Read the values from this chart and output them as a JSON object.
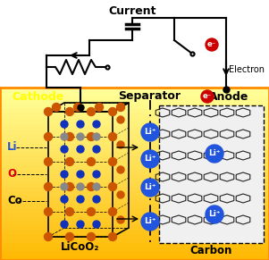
{
  "bg_color": "#FFFFFF",
  "yellow_top": "#FFFF99",
  "yellow_bottom": "#FFB800",
  "orange_border": "#FF8C00",
  "title": "Current",
  "cathode_label": "Cathode",
  "anode_label": "Anode",
  "separator_label": "Separator",
  "licoo2_label": "LiCoO₂",
  "carbon_label": "Carbon",
  "li_label": "Li",
  "o_label": "O",
  "co_label": "Co",
  "electron_label": "Electron",
  "li_ion_label": "Li⁺",
  "e_label": "e⁻",
  "crystal_orange": "#CC5500",
  "crystal_blue": "#1133BB",
  "crystal_gray": "#888888",
  "li_ion_color": "#2255DD",
  "e_color": "#CC0000",
  "wire_color": "#000000",
  "carbon_line_color": "#222222",
  "border_color": "#FF8C00",
  "cathode_text_color": "#FFFF00",
  "li_text_color": "#2255DD",
  "o_text_color": "#DD0000"
}
